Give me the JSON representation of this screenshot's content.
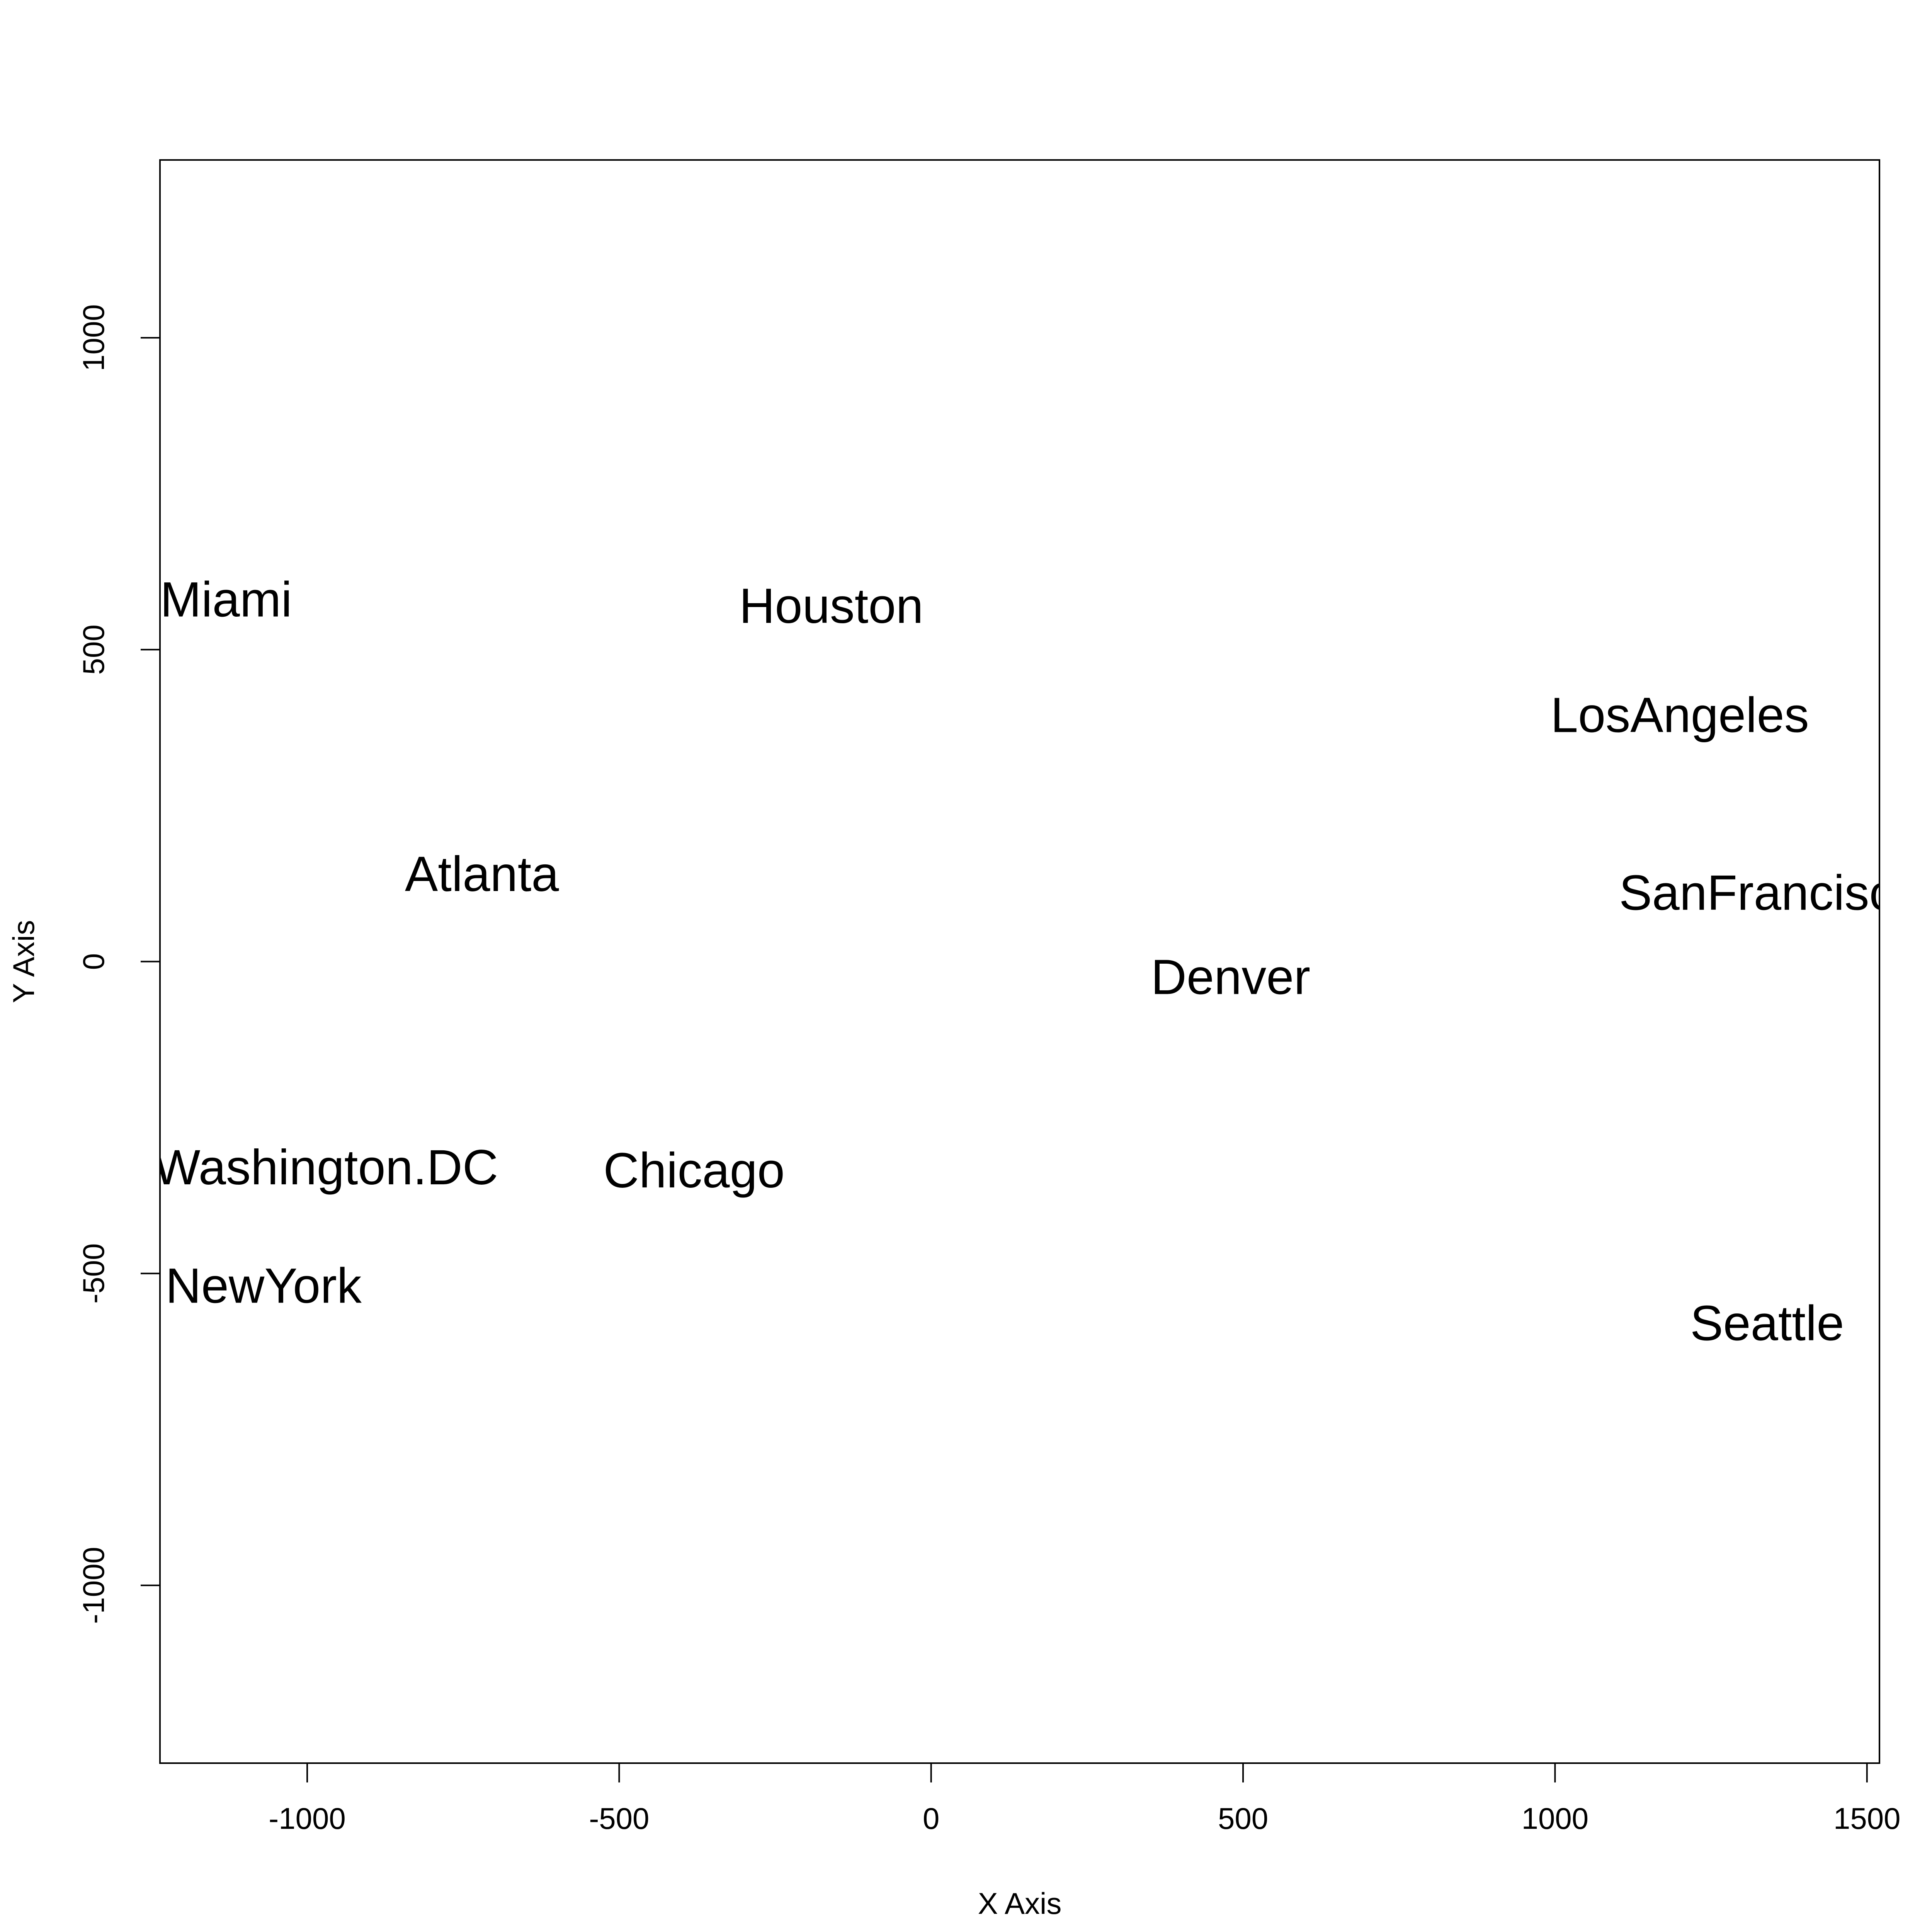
{
  "chart_data": {
    "type": "scatter",
    "marker": "text-labels",
    "title": "",
    "xlabel": "X Axis",
    "ylabel": "Y Axis",
    "xlim": [
      -1236,
      1520
    ],
    "ylim": [
      -1285,
      1285
    ],
    "xticks": [
      -1000,
      -500,
      0,
      500,
      1000,
      1500
    ],
    "yticks": [
      -1000,
      -500,
      0,
      500,
      1000
    ],
    "grid": false,
    "legend": "none",
    "points": [
      {
        "label": "Miami",
        "x": -1130,
        "y": 580
      },
      {
        "label": "Houston",
        "x": -160,
        "y": 570
      },
      {
        "label": "LosAngeles",
        "x": 1200,
        "y": 395
      },
      {
        "label": "Atlanta",
        "x": -720,
        "y": 140
      },
      {
        "label": "SanFrancisco",
        "x": 1345,
        "y": 110
      },
      {
        "label": "Denver",
        "x": 480,
        "y": -25
      },
      {
        "label": "Washington.DC",
        "x": -970,
        "y": -330
      },
      {
        "label": "Chicago",
        "x": -380,
        "y": -335
      },
      {
        "label": "NewYork",
        "x": -1070,
        "y": -520
      },
      {
        "label": "Seattle",
        "x": 1340,
        "y": -580
      }
    ]
  }
}
